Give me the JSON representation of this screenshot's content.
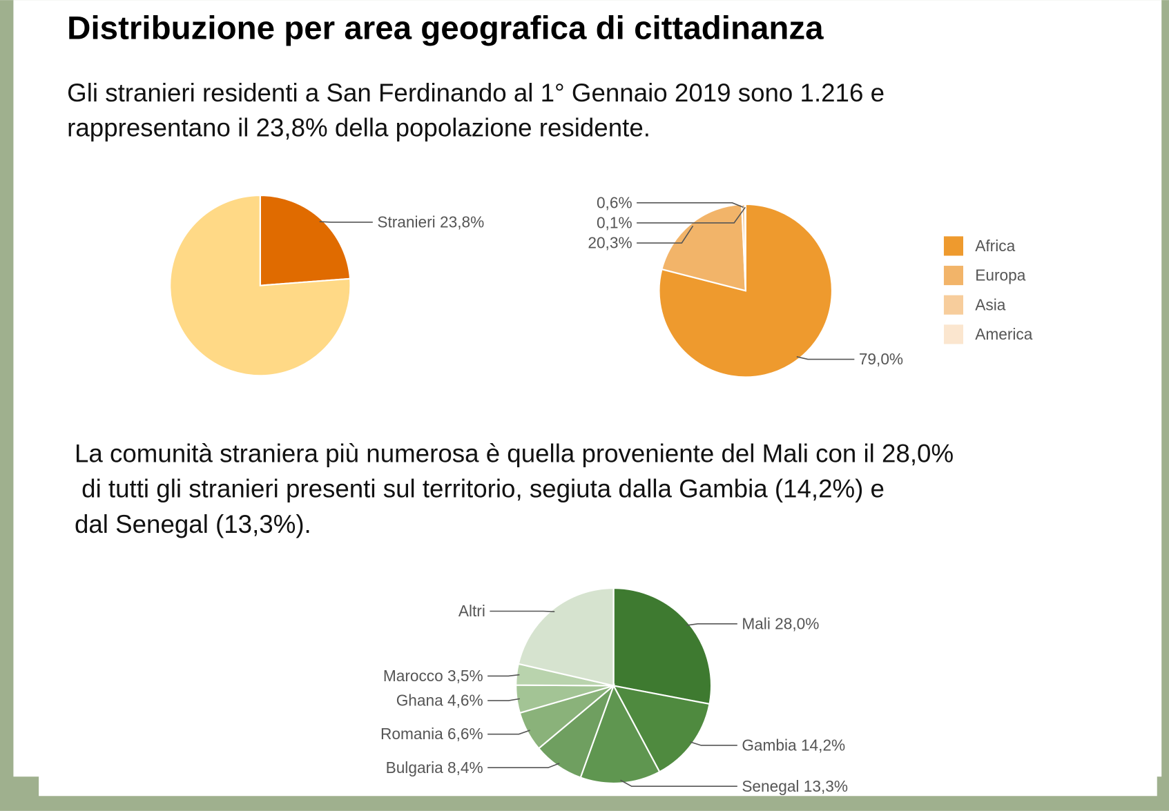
{
  "title": "Distribuzione per area geografica di cittadinanza",
  "intro": [
    "Gli stranieri residenti a San Ferdinando al 1° Gennaio 2019 sono 1.216 e",
    "rappresentano il 23,8% della popolazione residente."
  ],
  "note": [
    "La comunità straniera più numerosa è quella proveniente del Mali con il 28,0%",
    " di tutti gli stranieri presenti sul territorio, segiuta dalla Gambia (14,2%) e",
    "dal Senegal (13,3%)."
  ],
  "chart_data": [
    {
      "type": "pie",
      "categories": [
        "Stranieri",
        null
      ],
      "values": [
        23.8,
        76.2
      ],
      "value_labels": [
        "23,8%",
        null
      ],
      "colors": [
        "#e06b00",
        "#ffd986"
      ]
    },
    {
      "type": "pie",
      "categories": [
        "Africa",
        "Europa",
        "Asia",
        "America"
      ],
      "values": [
        79.0,
        20.3,
        0.6,
        0.1
      ],
      "value_labels": [
        "79,0%",
        "20,3%",
        "0,6%",
        "0,1%"
      ],
      "colors": [
        "#ee9a2e",
        "#f2b469",
        "#f7cd9c",
        "#fbe6cf"
      ],
      "legend": "right"
    },
    {
      "type": "pie",
      "categories": [
        "Mali",
        "Gambia",
        "Senegal",
        "Bulgaria",
        "Romania",
        "Ghana",
        "Marocco",
        "Altri"
      ],
      "values": [
        28.0,
        14.2,
        13.3,
        8.4,
        6.6,
        4.6,
        3.5,
        21.4
      ],
      "value_labels": [
        "28,0%",
        "14,2%",
        "13,3%",
        "8,4%",
        "6,6%",
        "4,6%",
        "3,5%",
        null
      ],
      "colors": [
        "#3e7a30",
        "#4f8a3f",
        "#5f9650",
        "#6f9f60",
        "#8ab27a",
        "#a3c495",
        "#b9d3ad",
        "#d6e3cf"
      ]
    }
  ]
}
